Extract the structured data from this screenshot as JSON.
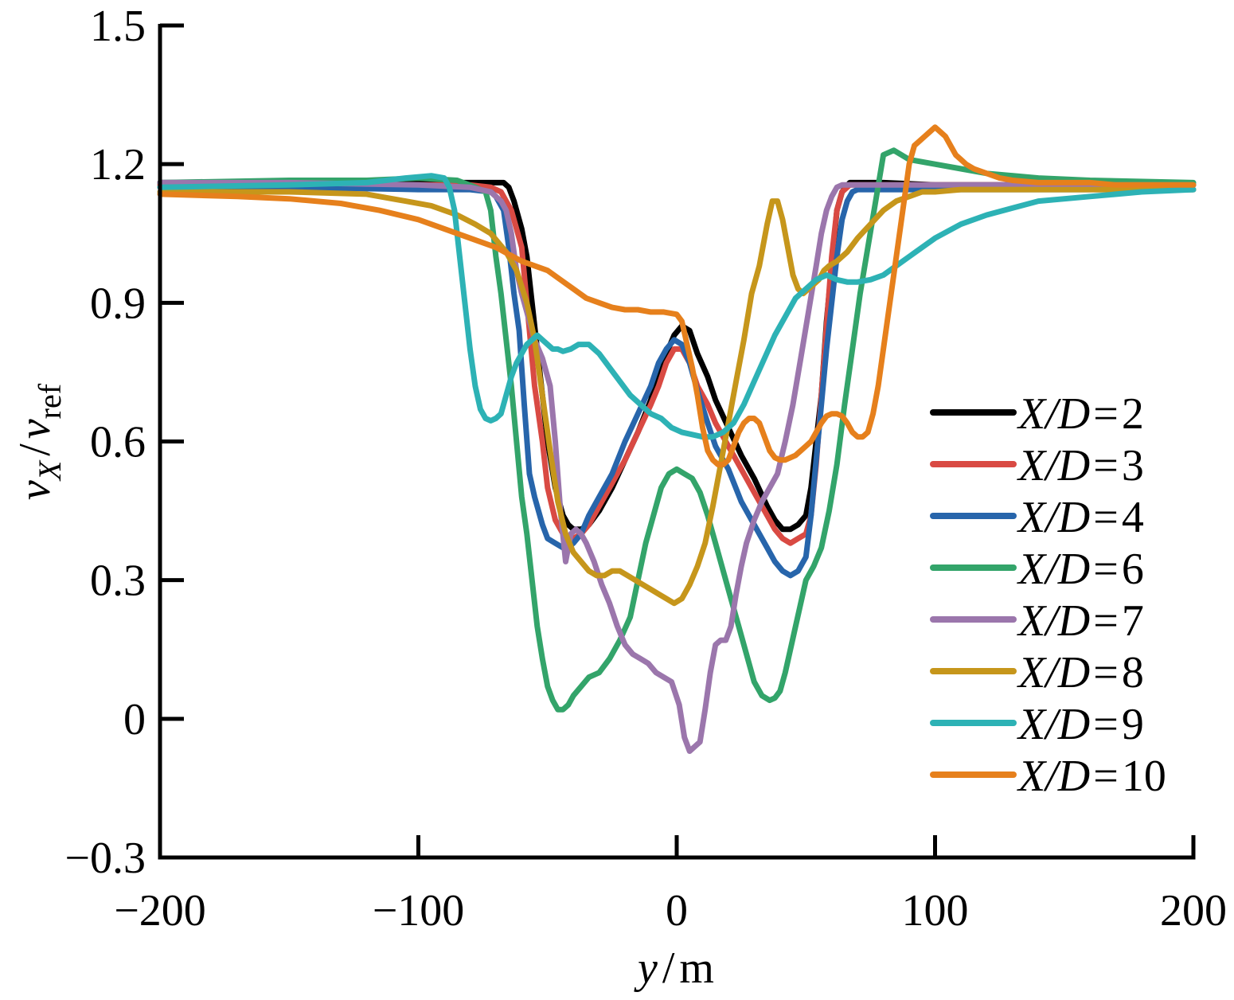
{
  "chart_data": {
    "type": "line",
    "title": "",
    "xlabel": {
      "var": "y",
      "sep": "/",
      "unit": "m"
    },
    "ylabel": {
      "num_var": "v",
      "num_sub": "X",
      "sep": "/",
      "den_var": "v",
      "den_sub": "ref"
    },
    "xlim": [
      -200,
      200
    ],
    "ylim": [
      -0.3,
      1.5
    ],
    "x_ticks": [
      -200,
      -100,
      0,
      100,
      200
    ],
    "x_tick_labels": [
      "−200",
      "−100",
      "0",
      "100",
      "200"
    ],
    "y_ticks": [
      -0.3,
      0,
      0.3,
      0.6,
      0.9,
      1.2,
      1.5
    ],
    "y_tick_labels": [
      "−0.3",
      "0",
      "0.3",
      "0.6",
      "0.9",
      "1.2",
      "1.5"
    ],
    "grid": false,
    "legend_placement": "right",
    "series": [
      {
        "name": "X/D=2",
        "legend_var": "X/D",
        "legend_eq": "=",
        "legend_val": "2",
        "color": "#000000",
        "x": [
          -200,
          -150,
          -100,
          -80,
          -70,
          -67,
          -65,
          -63,
          -60,
          -58,
          -55,
          -52,
          -50,
          -47,
          -44,
          -42,
          -40,
          -37,
          -34,
          -30,
          -25,
          -20,
          -15,
          -10,
          -7,
          -4,
          -1,
          2,
          5,
          8,
          12,
          15,
          20,
          25,
          30,
          35,
          38,
          41,
          44,
          47,
          50,
          52,
          54,
          56,
          58,
          60,
          62,
          64,
          67,
          70,
          80,
          100,
          150,
          200
        ],
        "y": [
          1.16,
          1.16,
          1.16,
          1.16,
          1.16,
          1.16,
          1.15,
          1.12,
          1.06,
          1.0,
          0.85,
          0.7,
          0.6,
          0.5,
          0.44,
          0.42,
          0.41,
          0.41,
          0.42,
          0.45,
          0.5,
          0.56,
          0.62,
          0.69,
          0.75,
          0.79,
          0.83,
          0.85,
          0.84,
          0.79,
          0.74,
          0.69,
          0.63,
          0.57,
          0.52,
          0.46,
          0.43,
          0.41,
          0.41,
          0.42,
          0.44,
          0.5,
          0.6,
          0.7,
          0.86,
          0.98,
          1.1,
          1.14,
          1.16,
          1.16,
          1.16,
          1.155,
          1.155,
          1.155
        ]
      },
      {
        "name": "X/D=3",
        "legend_var": "X/D",
        "legend_eq": "=",
        "legend_val": "3",
        "color": "#d94a43",
        "x": [
          -200,
          -150,
          -100,
          -80,
          -72,
          -68,
          -66,
          -64,
          -62,
          -60,
          -58,
          -55,
          -52,
          -50,
          -47,
          -44,
          -42,
          -40,
          -37,
          -34,
          -30,
          -25,
          -20,
          -15,
          -10,
          -7,
          -4,
          -1,
          2,
          5,
          8,
          12,
          15,
          20,
          25,
          30,
          35,
          38,
          41,
          44,
          47,
          50,
          52,
          54,
          56,
          58,
          60,
          62,
          64,
          67,
          70,
          80,
          100,
          150,
          200
        ],
        "y": [
          1.155,
          1.155,
          1.155,
          1.155,
          1.15,
          1.14,
          1.12,
          1.1,
          1.06,
          1.02,
          0.9,
          0.72,
          0.6,
          0.5,
          0.43,
          0.4,
          0.39,
          0.39,
          0.4,
          0.42,
          0.46,
          0.51,
          0.56,
          0.62,
          0.68,
          0.72,
          0.77,
          0.8,
          0.8,
          0.77,
          0.72,
          0.68,
          0.64,
          0.59,
          0.54,
          0.49,
          0.44,
          0.41,
          0.39,
          0.38,
          0.39,
          0.4,
          0.44,
          0.55,
          0.7,
          0.85,
          1.0,
          1.1,
          1.14,
          1.155,
          1.155,
          1.155,
          1.155,
          1.155,
          1.155
        ]
      },
      {
        "name": "X/D=4",
        "legend_var": "X/D",
        "legend_eq": "=",
        "legend_val": "4",
        "color": "#2765ab",
        "x": [
          -200,
          -150,
          -100,
          -80,
          -72,
          -70,
          -67,
          -65,
          -63,
          -61,
          -59,
          -57,
          -55,
          -52,
          -50,
          -47,
          -44,
          -42,
          -40,
          -37,
          -34,
          -30,
          -25,
          -20,
          -15,
          -10,
          -7,
          -4,
          -1,
          2,
          5,
          8,
          12,
          15,
          20,
          25,
          30,
          35,
          38,
          41,
          44,
          47,
          50,
          52,
          54,
          56,
          58,
          60,
          62,
          64,
          66,
          68,
          70,
          80,
          100,
          150,
          200
        ],
        "y": [
          1.15,
          1.15,
          1.145,
          1.145,
          1.14,
          1.13,
          1.1,
          1.02,
          0.92,
          0.84,
          0.68,
          0.53,
          0.48,
          0.42,
          0.39,
          0.38,
          0.37,
          0.37,
          0.38,
          0.4,
          0.44,
          0.48,
          0.53,
          0.6,
          0.66,
          0.72,
          0.77,
          0.8,
          0.82,
          0.81,
          0.77,
          0.71,
          0.64,
          0.59,
          0.54,
          0.47,
          0.42,
          0.37,
          0.34,
          0.32,
          0.31,
          0.32,
          0.35,
          0.44,
          0.56,
          0.68,
          0.8,
          0.9,
          1.0,
          1.08,
          1.12,
          1.14,
          1.145,
          1.145,
          1.145,
          1.145,
          1.145
        ]
      },
      {
        "name": "X/D=6",
        "legend_var": "X/D",
        "legend_eq": "=",
        "legend_val": "6",
        "color": "#33a46a",
        "x": [
          -200,
          -150,
          -120,
          -100,
          -85,
          -78,
          -74,
          -72,
          -70,
          -68,
          -66,
          -64,
          -62,
          -60,
          -58,
          -56,
          -54,
          -52,
          -50,
          -48,
          -46,
          -44,
          -42,
          -40,
          -37,
          -34,
          -30,
          -26,
          -22,
          -18,
          -15,
          -12,
          -9,
          -6,
          -3,
          0,
          3,
          6,
          9,
          12,
          15,
          18,
          21,
          24,
          27,
          30,
          33,
          36,
          38,
          40,
          42,
          44,
          46,
          48,
          50,
          53,
          56,
          59,
          62,
          65,
          68,
          71,
          74,
          77,
          80,
          84,
          90,
          100,
          110,
          120,
          140,
          160,
          200
        ],
        "y": [
          1.16,
          1.165,
          1.165,
          1.17,
          1.165,
          1.15,
          1.14,
          1.1,
          1.0,
          0.92,
          0.82,
          0.72,
          0.6,
          0.48,
          0.4,
          0.3,
          0.2,
          0.13,
          0.07,
          0.04,
          0.02,
          0.02,
          0.03,
          0.05,
          0.07,
          0.09,
          0.1,
          0.13,
          0.17,
          0.22,
          0.3,
          0.38,
          0.44,
          0.5,
          0.53,
          0.54,
          0.53,
          0.52,
          0.49,
          0.44,
          0.38,
          0.32,
          0.26,
          0.2,
          0.14,
          0.08,
          0.05,
          0.04,
          0.045,
          0.06,
          0.1,
          0.15,
          0.2,
          0.25,
          0.3,
          0.33,
          0.37,
          0.45,
          0.55,
          0.68,
          0.8,
          0.92,
          1.02,
          1.12,
          1.22,
          1.23,
          1.21,
          1.2,
          1.19,
          1.18,
          1.17,
          1.165,
          1.16
        ]
      },
      {
        "name": "X/D=7",
        "legend_var": "X/D",
        "legend_eq": "=",
        "legend_val": "7",
        "color": "#9b76ac",
        "x": [
          -200,
          -150,
          -100,
          -80,
          -72,
          -68,
          -66,
          -64,
          -62,
          -60,
          -58,
          -55,
          -52,
          -49,
          -47,
          -45,
          -43,
          -41,
          -39,
          -37,
          -35,
          -32,
          -29,
          -26,
          -23,
          -20,
          -17,
          -14,
          -11,
          -8,
          -5,
          -2,
          1,
          3,
          5,
          7,
          9,
          11,
          13,
          15,
          17,
          19,
          21,
          23,
          25,
          27,
          30,
          33,
          36,
          39,
          42,
          45,
          48,
          51,
          54,
          56,
          58,
          60,
          62,
          64,
          66,
          68,
          70,
          75,
          80,
          100,
          150,
          200
        ],
        "y": [
          1.16,
          1.16,
          1.155,
          1.15,
          1.14,
          1.12,
          1.1,
          1.05,
          0.97,
          0.92,
          0.88,
          0.82,
          0.78,
          0.72,
          0.6,
          0.45,
          0.34,
          0.4,
          0.41,
          0.4,
          0.38,
          0.34,
          0.29,
          0.25,
          0.2,
          0.16,
          0.14,
          0.13,
          0.12,
          0.1,
          0.09,
          0.08,
          0.03,
          -0.04,
          -0.07,
          -0.06,
          -0.05,
          0.02,
          0.1,
          0.16,
          0.17,
          0.17,
          0.2,
          0.27,
          0.33,
          0.38,
          0.43,
          0.47,
          0.5,
          0.53,
          0.6,
          0.68,
          0.78,
          0.88,
          0.98,
          1.05,
          1.1,
          1.13,
          1.15,
          1.155,
          1.155,
          1.155,
          1.155,
          1.155,
          1.155,
          1.155,
          1.155,
          1.155
        ]
      },
      {
        "name": "X/D=8",
        "legend_var": "X/D",
        "legend_eq": "=",
        "legend_val": "8",
        "color": "#c6961b",
        "x": [
          -200,
          -150,
          -120,
          -105,
          -95,
          -85,
          -78,
          -72,
          -66,
          -62,
          -58,
          -55,
          -52,
          -49,
          -46,
          -43,
          -40,
          -37,
          -34,
          -31,
          -28,
          -25,
          -22,
          -19,
          -16,
          -13,
          -10,
          -7,
          -4,
          -1,
          2,
          5,
          8,
          11,
          14,
          17,
          20,
          23,
          26,
          29,
          32,
          35,
          37,
          39,
          41,
          43,
          45,
          47,
          49,
          51,
          53,
          55,
          57,
          59,
          62,
          66,
          70,
          75,
          80,
          85,
          90,
          95,
          100,
          110,
          120,
          150,
          200
        ],
        "y": [
          1.14,
          1.14,
          1.135,
          1.12,
          1.11,
          1.09,
          1.07,
          1.05,
          1.01,
          0.97,
          0.9,
          0.82,
          0.7,
          0.58,
          0.47,
          0.4,
          0.36,
          0.34,
          0.32,
          0.31,
          0.31,
          0.32,
          0.32,
          0.31,
          0.3,
          0.29,
          0.28,
          0.27,
          0.26,
          0.25,
          0.26,
          0.29,
          0.33,
          0.38,
          0.46,
          0.55,
          0.64,
          0.73,
          0.82,
          0.92,
          0.98,
          1.07,
          1.12,
          1.12,
          1.08,
          1.02,
          0.96,
          0.93,
          0.92,
          0.93,
          0.94,
          0.95,
          0.97,
          0.98,
          0.99,
          1.01,
          1.04,
          1.07,
          1.1,
          1.12,
          1.13,
          1.14,
          1.14,
          1.145,
          1.145,
          1.145,
          1.145
        ]
      },
      {
        "name": "X/D=9",
        "legend_var": "X/D",
        "legend_eq": "=",
        "legend_val": "9",
        "color": "#2db2b5",
        "x": [
          -200,
          -150,
          -120,
          -105,
          -95,
          -90,
          -88,
          -86,
          -84,
          -82,
          -80,
          -78,
          -76,
          -74,
          -72,
          -70,
          -68,
          -66,
          -64,
          -62,
          -60,
          -58,
          -56,
          -54,
          -52,
          -50,
          -48,
          -46,
          -44,
          -41,
          -38,
          -34,
          -30,
          -26,
          -22,
          -18,
          -14,
          -10,
          -6,
          -2,
          2,
          6,
          10,
          14,
          18,
          22,
          26,
          30,
          34,
          38,
          42,
          46,
          50,
          54,
          58,
          62,
          66,
          70,
          75,
          80,
          85,
          90,
          100,
          110,
          120,
          140,
          160,
          180,
          200
        ],
        "y": [
          1.15,
          1.155,
          1.16,
          1.17,
          1.175,
          1.17,
          1.15,
          1.1,
          1.0,
          0.9,
          0.8,
          0.72,
          0.67,
          0.65,
          0.645,
          0.65,
          0.66,
          0.7,
          0.74,
          0.77,
          0.79,
          0.81,
          0.82,
          0.83,
          0.82,
          0.81,
          0.8,
          0.8,
          0.795,
          0.8,
          0.81,
          0.81,
          0.79,
          0.76,
          0.73,
          0.7,
          0.68,
          0.66,
          0.65,
          0.63,
          0.62,
          0.615,
          0.61,
          0.61,
          0.62,
          0.64,
          0.68,
          0.73,
          0.78,
          0.83,
          0.87,
          0.91,
          0.93,
          0.95,
          0.96,
          0.95,
          0.945,
          0.945,
          0.95,
          0.96,
          0.98,
          1.0,
          1.04,
          1.07,
          1.09,
          1.12,
          1.13,
          1.14,
          1.145
        ]
      },
      {
        "name": "X/D=10",
        "legend_var": "X/D",
        "legend_eq": "=",
        "legend_val": "10",
        "color": "#e6801c",
        "x": [
          -200,
          -170,
          -150,
          -130,
          -115,
          -100,
          -90,
          -80,
          -70,
          -60,
          -50,
          -45,
          -40,
          -35,
          -30,
          -25,
          -20,
          -15,
          -10,
          -5,
          0,
          2,
          4,
          6,
          8,
          10,
          12,
          14,
          16,
          18,
          20,
          22,
          24,
          26,
          28,
          30,
          32,
          34,
          36,
          38,
          40,
          42,
          44,
          46,
          48,
          50,
          52,
          54,
          56,
          58,
          60,
          62,
          64,
          66,
          68,
          70,
          72,
          74,
          76,
          78,
          80,
          82,
          84,
          86,
          88,
          90,
          92,
          94,
          96,
          98,
          100,
          102,
          104,
          106,
          108,
          110,
          112,
          115,
          120,
          125,
          130,
          140,
          150,
          160,
          170,
          200
        ],
        "y": [
          1.135,
          1.13,
          1.125,
          1.115,
          1.1,
          1.08,
          1.06,
          1.04,
          1.02,
          0.99,
          0.97,
          0.95,
          0.93,
          0.91,
          0.9,
          0.89,
          0.885,
          0.885,
          0.88,
          0.88,
          0.875,
          0.86,
          0.81,
          0.76,
          0.7,
          0.63,
          0.58,
          0.56,
          0.55,
          0.55,
          0.56,
          0.59,
          0.62,
          0.64,
          0.65,
          0.65,
          0.64,
          0.61,
          0.58,
          0.565,
          0.56,
          0.56,
          0.565,
          0.57,
          0.58,
          0.59,
          0.6,
          0.62,
          0.64,
          0.655,
          0.66,
          0.66,
          0.655,
          0.64,
          0.62,
          0.61,
          0.61,
          0.62,
          0.66,
          0.72,
          0.8,
          0.88,
          0.96,
          1.04,
          1.12,
          1.2,
          1.24,
          1.25,
          1.26,
          1.27,
          1.28,
          1.27,
          1.26,
          1.24,
          1.22,
          1.21,
          1.2,
          1.19,
          1.18,
          1.17,
          1.165,
          1.16,
          1.16,
          1.16,
          1.155,
          1.155
        ]
      }
    ]
  }
}
